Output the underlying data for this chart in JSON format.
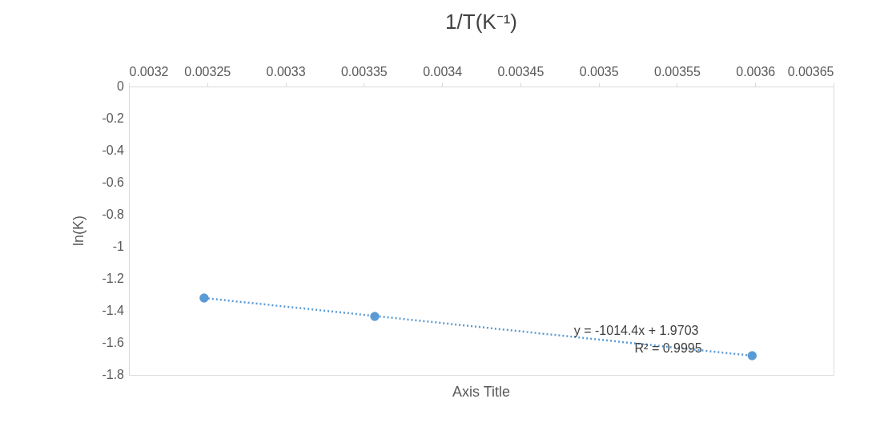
{
  "chart_data": {
    "type": "scatter",
    "title": "1/T(K⁻¹)",
    "xlabel": "Axis Title",
    "ylabel": "ln(K)",
    "xlim": [
      0.0032,
      0.00365
    ],
    "xticks": [
      0.0032,
      0.00325,
      0.0033,
      0.00335,
      0.0034,
      0.00345,
      0.0035,
      0.00355,
      0.0036,
      0.00365
    ],
    "ylim": [
      -1.8,
      0
    ],
    "yticks": [
      0,
      -0.2,
      -0.4,
      -0.6,
      -0.8,
      -1,
      -1.2,
      -1.4,
      -1.6,
      -1.8
    ],
    "grid": false,
    "marker": "circle",
    "x": [
      0.003248,
      0.003357,
      0.003598
    ],
    "series": [
      {
        "color": "#5b9bd5",
        "values": [
          -1.32,
          -1.435,
          -1.68
        ]
      },
      {
        "type": "line",
        "color": "#5b9bd5",
        "line_style": "dotted",
        "marker": "none",
        "x": [
          0.003248,
          0.003598
        ],
        "values": [
          -1.32,
          -1.68
        ]
      }
    ],
    "annotations": [
      "y = -1014.4x + 1.9703",
      "R² = 0.9995"
    ]
  }
}
